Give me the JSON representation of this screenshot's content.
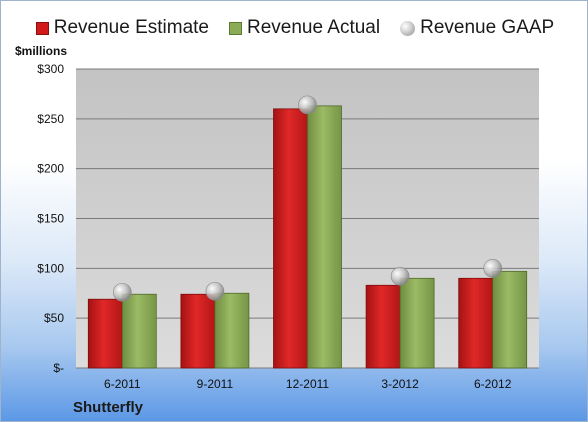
{
  "legend": {
    "estimate": "Revenue Estimate",
    "actual": "Revenue Actual",
    "gaap": "Revenue GAAP"
  },
  "unit_label": "$millions",
  "company": "Shutterfly",
  "colors": {
    "estimate": "#d11b1b",
    "actual": "#8bab57",
    "gaap": "#b5b5b5"
  },
  "chart_data": {
    "type": "bar",
    "categories": [
      "6-2011",
      "9-2011",
      "12-2011",
      "3-2012",
      "6-2012"
    ],
    "series": [
      {
        "name": "Revenue Estimate",
        "values": [
          69,
          74,
          260,
          83,
          90
        ]
      },
      {
        "name": "Revenue Actual",
        "values": [
          74,
          75,
          263,
          90,
          97
        ]
      },
      {
        "name": "Revenue GAAP",
        "values": [
          76,
          77,
          264,
          92,
          100
        ]
      }
    ],
    "ylabel": "$millions",
    "ylim": [
      0,
      300
    ],
    "yticks": [
      0,
      50,
      100,
      150,
      200,
      250,
      300
    ],
    "ytick_labels": [
      "$-",
      "$50",
      "$100",
      "$150",
      "$200",
      "$250",
      "$300"
    ],
    "grid": true,
    "legend_position": "top"
  }
}
